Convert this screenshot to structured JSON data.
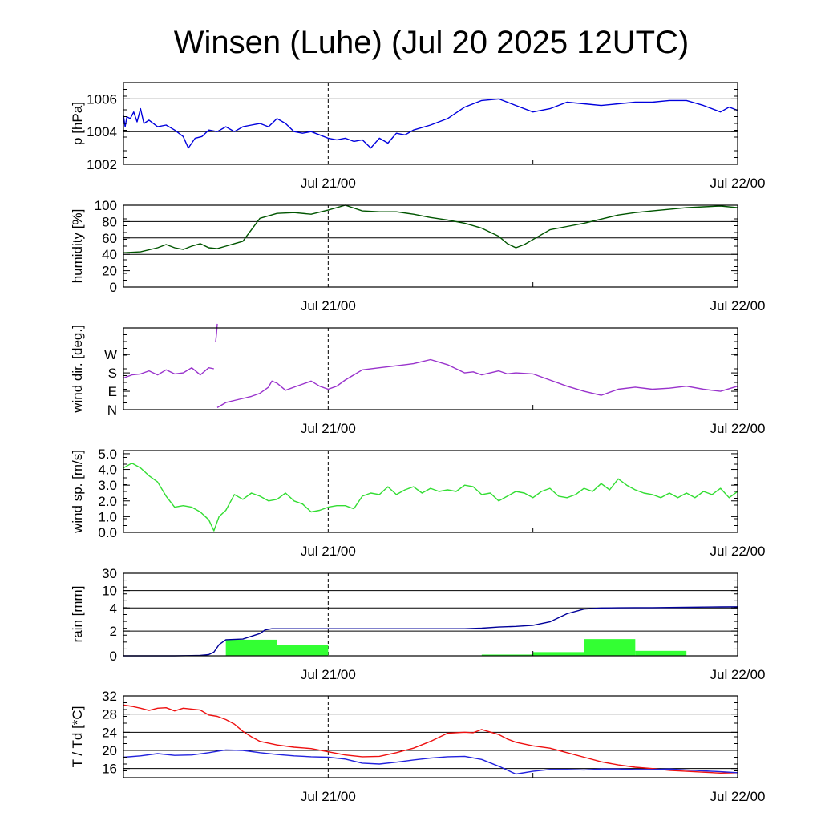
{
  "title": "Winsen (Luhe) (Jul 20 2025 12UTC)",
  "x_axis": {
    "unit": "hours since Jul 20 12UTC",
    "range": [
      0,
      36
    ],
    "ticks": [
      {
        "x": 12,
        "label": "Jul 21/00"
      },
      {
        "x": 36,
        "label": "Jul 22/00"
      }
    ],
    "minor_ticks": [
      24
    ],
    "dashed_marker": 12
  },
  "chart_data": [
    {
      "type": "line",
      "id": "pressure",
      "ylabel": "p [hPa]",
      "ylim": [
        1002,
        1007
      ],
      "yticks": [
        {
          "v": 1002,
          "label": "1002"
        },
        {
          "v": 1004,
          "label": "1004"
        },
        {
          "v": 1006,
          "label": "1006"
        }
      ],
      "grid": [
        1004,
        1006
      ],
      "series": [
        {
          "color": "#0000dd",
          "x": [
            0,
            0.1,
            0.2,
            0.4,
            0.6,
            0.8,
            1.0,
            1.2,
            1.5,
            2,
            2.5,
            3,
            3.5,
            3.8,
            4.2,
            4.6,
            5,
            5.5,
            6,
            6.5,
            7,
            7.5,
            8,
            8.5,
            9,
            9.5,
            10,
            10.5,
            11,
            11.5,
            12,
            12.5,
            13,
            13.5,
            14,
            14.5,
            15,
            15.5,
            16,
            16.5,
            17,
            18,
            19,
            20,
            21,
            22,
            23,
            24,
            25,
            26,
            27,
            28,
            29,
            30,
            31,
            32,
            33,
            34,
            35,
            35.5,
            36
          ],
          "y": [
            1005,
            1004.3,
            1004.9,
            1004.8,
            1005.2,
            1004.6,
            1005.4,
            1004.5,
            1004.7,
            1004.3,
            1004.4,
            1004.1,
            1003.7,
            1003.0,
            1003.6,
            1003.7,
            1004.1,
            1004.0,
            1004.3,
            1004.0,
            1004.3,
            1004.4,
            1004.5,
            1004.3,
            1004.8,
            1004.5,
            1004.0,
            1003.9,
            1004.0,
            1003.8,
            1003.6,
            1003.5,
            1003.6,
            1003.4,
            1003.5,
            1003.0,
            1003.6,
            1003.3,
            1003.9,
            1003.8,
            1004.1,
            1004.4,
            1004.8,
            1005.5,
            1005.9,
            1006.0,
            1005.6,
            1005.2,
            1005.4,
            1005.8,
            1005.7,
            1005.6,
            1005.7,
            1005.8,
            1005.8,
            1005.9,
            1005.9,
            1005.6,
            1005.2,
            1005.5,
            1005.3
          ]
        }
      ]
    },
    {
      "type": "line",
      "id": "humidity",
      "ylabel": "humidity [%]",
      "ylim": [
        0,
        100
      ],
      "yticks": [
        {
          "v": 0,
          "label": "0"
        },
        {
          "v": 20,
          "label": "20"
        },
        {
          "v": 40,
          "label": "40"
        },
        {
          "v": 60,
          "label": "60"
        },
        {
          "v": 80,
          "label": "80"
        },
        {
          "v": 100,
          "label": "100"
        }
      ],
      "grid": [
        40,
        60,
        80
      ],
      "series": [
        {
          "color": "#005500",
          "x": [
            0,
            1,
            2,
            2.5,
            3,
            3.5,
            4,
            4.5,
            5,
            5.5,
            6,
            6.5,
            7,
            8,
            9,
            10,
            11,
            12,
            13,
            14,
            15,
            16,
            17,
            18,
            19,
            20,
            21,
            22,
            22.5,
            23,
            23.5,
            24,
            25,
            26,
            27,
            28,
            29,
            30,
            31,
            32,
            33,
            34,
            35,
            36
          ],
          "y": [
            42,
            43,
            48,
            52,
            48,
            46,
            50,
            53,
            48,
            47,
            50,
            53,
            56,
            84,
            90,
            91,
            89,
            94,
            100,
            93,
            92,
            92,
            89,
            85,
            82,
            78,
            72,
            62,
            53,
            48,
            52,
            58,
            70,
            74,
            78,
            83,
            88,
            91,
            93,
            95,
            97,
            98,
            99,
            97
          ]
        }
      ]
    },
    {
      "type": "line",
      "id": "wind_direction",
      "ylabel": "wind dir. [deg.]",
      "ylim": [
        0,
        400
      ],
      "yticks": [
        {
          "v": 0,
          "label": "N"
        },
        {
          "v": 90,
          "label": "E"
        },
        {
          "v": 180,
          "label": "S"
        },
        {
          "v": 270,
          "label": "W"
        }
      ],
      "grid": [],
      "series": [
        {
          "color": "#9933cc",
          "x": [
            0,
            0.5,
            1,
            1.5,
            2,
            2.5,
            3,
            3.5,
            4,
            4.5,
            5,
            5.3
          ],
          "y": [
            155,
            170,
            175,
            190,
            170,
            195,
            175,
            180,
            205,
            170,
            205,
            200
          ]
        },
        {
          "color": "#9933cc",
          "x": [
            5.4,
            5.45,
            5.5
          ],
          "y": [
            330,
            370,
            420
          ]
        },
        {
          "color": "#9933cc",
          "x": [
            5.5,
            6,
            6.5,
            7,
            7.5,
            8,
            8.5,
            8.7,
            9,
            9.5,
            10,
            10.5,
            11,
            11.5,
            12,
            12.5,
            13,
            13.5,
            14,
            15,
            16,
            17,
            18,
            19,
            20,
            20.5,
            21,
            21.5,
            22,
            22.5,
            23,
            24,
            25,
            26,
            27,
            28,
            29,
            30,
            31,
            32,
            33,
            34,
            35,
            36
          ],
          "y": [
            10,
            35,
            45,
            55,
            65,
            80,
            110,
            140,
            130,
            95,
            110,
            125,
            140,
            115,
            100,
            115,
            145,
            170,
            195,
            205,
            215,
            225,
            245,
            220,
            180,
            185,
            170,
            180,
            190,
            175,
            180,
            175,
            145,
            115,
            90,
            70,
            100,
            110,
            100,
            105,
            115,
            100,
            90,
            115
          ]
        }
      ]
    },
    {
      "type": "line",
      "id": "wind_speed",
      "ylabel": "wind sp. [m/s]",
      "ylim": [
        0,
        5.2
      ],
      "yticks": [
        {
          "v": 0,
          "label": "0.0"
        },
        {
          "v": 1,
          "label": "1.0"
        },
        {
          "v": 2,
          "label": "2.0"
        },
        {
          "v": 3,
          "label": "3.0"
        },
        {
          "v": 4,
          "label": "4.0"
        },
        {
          "v": 5,
          "label": "5.0"
        }
      ],
      "grid": [],
      "series": [
        {
          "color": "#33dd33",
          "x": [
            0,
            0.5,
            1,
            1.5,
            2,
            2.5,
            3,
            3.5,
            4,
            4.5,
            5,
            5.3,
            5.6,
            6,
            6.5,
            7,
            7.5,
            8,
            8.5,
            9,
            9.5,
            10,
            10.5,
            11,
            11.5,
            12,
            12.5,
            13,
            13.5,
            14,
            14.5,
            15,
            15.5,
            16,
            16.5,
            17,
            17.5,
            18,
            18.5,
            19,
            19.5,
            20,
            20.5,
            21,
            21.5,
            22,
            22.5,
            23,
            23.5,
            24,
            24.5,
            25,
            25.5,
            26,
            26.5,
            27,
            27.5,
            28,
            28.5,
            29,
            29.5,
            30,
            30.5,
            31,
            31.5,
            32,
            32.5,
            33,
            33.5,
            34,
            34.5,
            35,
            35.5,
            36
          ],
          "y": [
            4.1,
            4.4,
            4.1,
            3.6,
            3.2,
            2.3,
            1.6,
            1.7,
            1.6,
            1.3,
            0.8,
            0.1,
            1.0,
            1.4,
            2.4,
            2.1,
            2.5,
            2.3,
            2.0,
            2.1,
            2.5,
            2.0,
            1.8,
            1.3,
            1.4,
            1.6,
            1.7,
            1.7,
            1.5,
            2.3,
            2.5,
            2.4,
            2.9,
            2.4,
            2.7,
            2.9,
            2.5,
            2.8,
            2.6,
            2.7,
            2.6,
            3.0,
            2.9,
            2.4,
            2.5,
            2.0,
            2.3,
            2.6,
            2.5,
            2.2,
            2.6,
            2.8,
            2.3,
            2.2,
            2.4,
            2.8,
            2.6,
            3.1,
            2.7,
            3.4,
            3.0,
            2.7,
            2.5,
            2.4,
            2.2,
            2.5,
            2.2,
            2.5,
            2.2,
            2.6,
            2.4,
            2.8,
            2.2,
            2.6
          ]
        }
      ]
    },
    {
      "type": "bar",
      "id": "rain",
      "ylabel": "rain [mm]",
      "yticks": [
        {
          "v": 0,
          "label": "0"
        },
        {
          "v": 2,
          "label": "2"
        },
        {
          "v": 4,
          "label": "4"
        },
        {
          "v": 10,
          "label": "10"
        },
        {
          "v": 30,
          "label": "30"
        }
      ],
      "grid": [
        2,
        4,
        10,
        30
      ],
      "bars": {
        "color": "#33ff33",
        "bin_hours": 3,
        "start": [
          0,
          3,
          6,
          9,
          12,
          15,
          18,
          21,
          24,
          27,
          30,
          33
        ],
        "values": [
          0,
          0.02,
          1.3,
          0.85,
          0,
          0,
          0,
          0.1,
          0.3,
          1.35,
          0.4,
          0
        ]
      },
      "cumulative": {
        "color": "#000099",
        "x": [
          0,
          3,
          4,
          4.5,
          5,
          5.3,
          5.6,
          6,
          7,
          8,
          8.3,
          8.7,
          9,
          10,
          20,
          21,
          22,
          23,
          24,
          25,
          26,
          27,
          28,
          29,
          30,
          31,
          32,
          33,
          34,
          35,
          36
        ],
        "y": [
          0,
          0,
          0.02,
          0.03,
          0.1,
          0.3,
          0.9,
          1.3,
          1.35,
          1.8,
          2.1,
          2.2,
          2.2,
          2.2,
          2.2,
          2.25,
          2.35,
          2.4,
          2.5,
          2.8,
          3.5,
          3.9,
          4.0,
          4.05,
          4.1,
          4.1,
          4.15,
          4.2,
          4.3,
          4.35,
          4.4
        ]
      }
    },
    {
      "type": "line",
      "id": "temperature",
      "ylabel": "T / Td [*C]",
      "ylim": [
        14,
        32
      ],
      "yticks": [
        {
          "v": 16,
          "label": "16"
        },
        {
          "v": 20,
          "label": "20"
        },
        {
          "v": 24,
          "label": "24"
        },
        {
          "v": 28,
          "label": "28"
        },
        {
          "v": 32,
          "label": "32"
        }
      ],
      "grid": [
        16,
        20,
        24,
        28,
        32
      ],
      "series": [
        {
          "color": "#ee1111",
          "x": [
            0,
            0.5,
            1,
            1.5,
            2,
            2.5,
            3,
            3.5,
            4,
            4.5,
            5,
            5.5,
            6,
            6.5,
            7,
            7.5,
            8,
            9,
            10,
            11,
            12,
            13,
            14,
            15,
            16,
            17,
            18,
            19,
            20,
            20.5,
            21,
            22,
            22.5,
            23,
            24,
            25,
            26,
            27,
            28,
            29,
            30,
            31,
            32,
            33,
            34,
            35,
            36
          ],
          "y": [
            30,
            29.7,
            29.3,
            28.8,
            29.3,
            29.4,
            28.7,
            29.3,
            29.1,
            28.9,
            27.8,
            27.5,
            26.8,
            25.8,
            24.2,
            23.0,
            22.0,
            21.2,
            20.7,
            20.4,
            19.7,
            19.0,
            18.6,
            18.7,
            19.5,
            20.5,
            22.0,
            23.8,
            24.0,
            23.9,
            24.6,
            23.5,
            22.5,
            21.8,
            21.0,
            20.5,
            19.5,
            18.5,
            17.5,
            16.8,
            16.3,
            16.0,
            15.6,
            15.4,
            15.2,
            15.0,
            15.1
          ]
        },
        {
          "color": "#2222dd",
          "x": [
            0,
            1,
            2,
            3,
            4,
            5,
            5.5,
            6,
            7,
            8,
            9,
            10,
            11,
            12,
            13,
            14,
            15,
            16,
            17,
            18,
            19,
            20,
            21,
            22,
            23,
            24,
            25,
            26,
            27,
            28,
            29,
            30,
            31,
            32,
            33,
            34,
            35,
            36
          ],
          "y": [
            18.5,
            18.8,
            19.3,
            18.9,
            19.0,
            19.5,
            19.8,
            20.1,
            20.0,
            19.5,
            19.1,
            18.8,
            18.6,
            18.5,
            18.1,
            17.2,
            17.0,
            17.4,
            17.9,
            18.3,
            18.6,
            18.7,
            18.0,
            16.5,
            14.8,
            15.4,
            15.8,
            15.8,
            15.7,
            15.9,
            15.9,
            15.8,
            15.8,
            15.9,
            15.7,
            15.5,
            15.3,
            15.1
          ]
        }
      ]
    }
  ]
}
